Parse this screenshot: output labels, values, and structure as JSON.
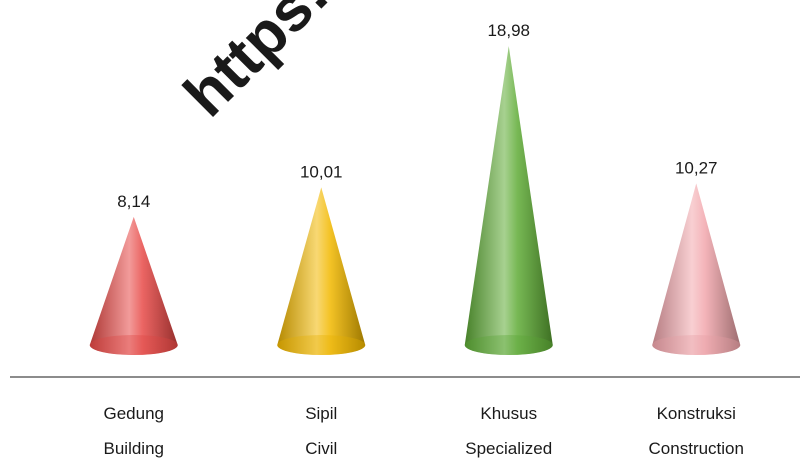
{
  "watermark": "https://",
  "chart_data": {
    "type": "bar",
    "bar_shape": "cone",
    "categories": [
      [
        "Gedung",
        "Building"
      ],
      [
        "Sipil",
        "Civil"
      ],
      [
        "Khusus",
        "Specialized"
      ],
      [
        "Konstruksi",
        "Construction"
      ]
    ],
    "values": [
      8.14,
      10.01,
      18.98,
      10.27
    ],
    "value_labels": [
      "8,14",
      "10,01",
      "18,98",
      "10,27"
    ],
    "colors": [
      "#e84a47",
      "#f2b800",
      "#5fac36",
      "#f2a7ad"
    ],
    "ylim": [
      0,
      19.5
    ],
    "grid": false,
    "legend": "none",
    "title": "",
    "xlabel": "",
    "ylabel": ""
  }
}
